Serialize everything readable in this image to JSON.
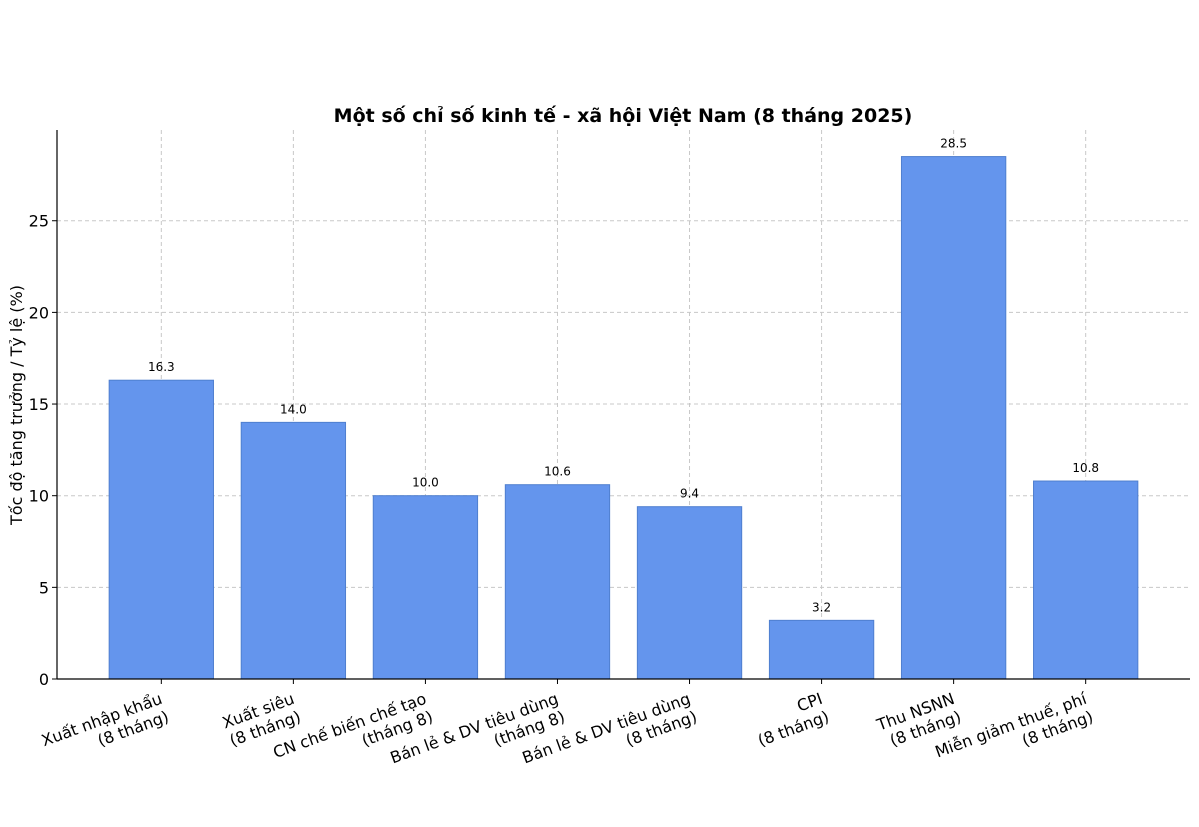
{
  "chart_data": {
    "type": "bar",
    "title": "Một số chỉ số kinh tế - xã hội Việt Nam (8 tháng 2025)",
    "ylabel": "Tốc độ tăng trưởng / Tỷ lệ (%)",
    "categories": [
      "Xuất nhập khẩu\n(8 tháng)",
      "Xuất siêu\n(8 tháng)",
      "CN chế biến chế tạo\n(tháng 8)",
      "Bán lẻ & DV tiêu dùng\n(tháng 8)",
      "Bán lẻ & DV tiêu dùng\n(8 tháng)",
      "CPI\n(8 tháng)",
      "Thu NSNN\n(8 tháng)",
      "Miễn giảm thuế, phí\n(8 tháng)"
    ],
    "values": [
      16.3,
      14.0,
      10.0,
      10.6,
      9.4,
      3.2,
      28.5,
      10.8
    ],
    "value_labels": [
      "16.3",
      "14.0",
      "10.0",
      "10.6",
      "9.4",
      "3.2",
      "28.5",
      "10.8"
    ],
    "color": "#6495ed",
    "ylim": [
      0,
      29.95
    ],
    "yticks": [
      0,
      5,
      10,
      15,
      20,
      25
    ],
    "grid": true
  }
}
